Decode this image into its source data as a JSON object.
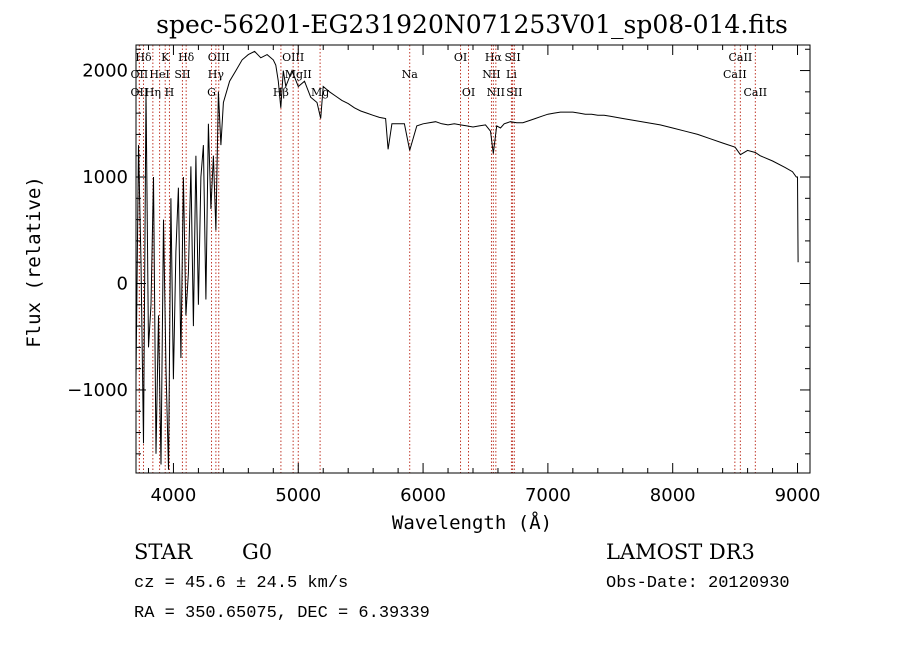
{
  "chart_data": {
    "type": "line",
    "title": "spec-56201-EG231920N071253V01_sp08-014.fits",
    "xlabel": "Wavelength (Å)",
    "ylabel": "Flux (relative)",
    "xlim": [
      3700,
      9100
    ],
    "ylim": [
      -1780,
      2240
    ],
    "x_ticks": [
      4000,
      5000,
      6000,
      7000,
      8000,
      9000
    ],
    "y_ticks": [
      -1000,
      0,
      1000,
      2000
    ],
    "series": [
      {
        "name": "flux",
        "x": [
          3700,
          3720,
          3740,
          3760,
          3780,
          3800,
          3820,
          3840,
          3860,
          3880,
          3900,
          3920,
          3940,
          3960,
          3980,
          4000,
          4020,
          4040,
          4060,
          4080,
          4100,
          4120,
          4140,
          4160,
          4180,
          4200,
          4220,
          4240,
          4260,
          4280,
          4300,
          4320,
          4340,
          4360,
          4380,
          4400,
          4450,
          4500,
          4550,
          4600,
          4650,
          4700,
          4750,
          4800,
          4820,
          4840,
          4860,
          4880,
          4900,
          4950,
          5000,
          5050,
          5100,
          5150,
          5180,
          5200,
          5250,
          5300,
          5350,
          5400,
          5450,
          5500,
          5550,
          5600,
          5650,
          5700,
          5720,
          5750,
          5800,
          5850,
          5893,
          5950,
          6000,
          6050,
          6100,
          6150,
          6200,
          6250,
          6300,
          6350,
          6400,
          6450,
          6500,
          6540,
          6563,
          6590,
          6620,
          6650,
          6700,
          6750,
          6800,
          6850,
          6900,
          6950,
          7000,
          7050,
          7100,
          7150,
          7200,
          7250,
          7300,
          7350,
          7400,
          7450,
          7500,
          7600,
          7700,
          7800,
          7900,
          8000,
          8100,
          8200,
          8300,
          8400,
          8500,
          8542,
          8600,
          8662,
          8700,
          8800,
          8900,
          8960,
          8990,
          9000,
          9005
        ],
        "values": [
          -900,
          1300,
          200,
          -1500,
          1800,
          -600,
          -200,
          1000,
          -1600,
          -300,
          -1700,
          600,
          -800,
          -1750,
          800,
          -900,
          300,
          900,
          -700,
          1000,
          -300,
          100,
          1100,
          -400,
          1200,
          -200,
          1000,
          1300,
          -150,
          1500,
          700,
          1200,
          500,
          1800,
          1300,
          1700,
          1900,
          2000,
          2100,
          2150,
          2180,
          2120,
          2150,
          2100,
          2050,
          1900,
          1650,
          2000,
          1850,
          2000,
          1850,
          1900,
          1750,
          1700,
          1550,
          1850,
          1800,
          1760,
          1720,
          1690,
          1650,
          1620,
          1600,
          1580,
          1560,
          1550,
          1260,
          1500,
          1500,
          1500,
          1250,
          1480,
          1500,
          1510,
          1520,
          1500,
          1490,
          1500,
          1490,
          1480,
          1470,
          1480,
          1490,
          1430,
          1220,
          1480,
          1460,
          1500,
          1520,
          1510,
          1510,
          1530,
          1550,
          1570,
          1590,
          1600,
          1610,
          1610,
          1610,
          1600,
          1590,
          1590,
          1580,
          1580,
          1570,
          1550,
          1530,
          1510,
          1490,
          1460,
          1430,
          1400,
          1360,
          1320,
          1280,
          1210,
          1250,
          1230,
          1200,
          1150,
          1090,
          1050,
          1000,
          1000,
          200
        ]
      }
    ],
    "line_markers": [
      {
        "label": "Hδ",
        "wavelength": 3760,
        "tier": 0
      },
      {
        "label": "K",
        "wavelength": 3934,
        "tier": 0
      },
      {
        "label": "Hδ",
        "wavelength": 4102,
        "tier": 0
      },
      {
        "label": "OIII",
        "wavelength": 4363,
        "tier": 0
      },
      {
        "label": "OIII",
        "wavelength": 4959,
        "tier": 0
      },
      {
        "label": "OI",
        "wavelength": 6300,
        "tier": 0
      },
      {
        "label": "Hα",
        "wavelength": 6563,
        "tier": 0
      },
      {
        "label": "SII",
        "wavelength": 6717,
        "tier": 0
      },
      {
        "label": "CaII",
        "wavelength": 8542,
        "tier": 0
      },
      {
        "label": "OII",
        "wavelength": 3727,
        "tier": 1
      },
      {
        "label": "HeI",
        "wavelength": 3889,
        "tier": 1
      },
      {
        "label": "SII",
        "wavelength": 4072,
        "tier": 1
      },
      {
        "label": "Hγ",
        "wavelength": 4340,
        "tier": 1
      },
      {
        "label": "MgII",
        "wavelength": 5000,
        "tier": 1
      },
      {
        "label": "Na",
        "wavelength": 5893,
        "tier": 1
      },
      {
        "label": "NII",
        "wavelength": 6548,
        "tier": 1
      },
      {
        "label": "Li",
        "wavelength": 6708,
        "tier": 1
      },
      {
        "label": "CaII",
        "wavelength": 8498,
        "tier": 1
      },
      {
        "label": "OII",
        "wavelength": 3727,
        "tier": 2
      },
      {
        "label": "Hη",
        "wavelength": 3835,
        "tier": 2
      },
      {
        "label": "H",
        "wavelength": 3968,
        "tier": 2
      },
      {
        "label": "G",
        "wavelength": 4305,
        "tier": 2
      },
      {
        "label": "Hβ",
        "wavelength": 4861,
        "tier": 2
      },
      {
        "label": "Mg",
        "wavelength": 5175,
        "tier": 2
      },
      {
        "label": "OI",
        "wavelength": 6364,
        "tier": 2
      },
      {
        "label": "NII",
        "wavelength": 6583,
        "tier": 2
      },
      {
        "label": "SII",
        "wavelength": 6731,
        "tier": 2
      },
      {
        "label": "CaII",
        "wavelength": 8662,
        "tier": 2
      }
    ]
  },
  "info": {
    "object_class": "STAR",
    "subclass": "G0",
    "survey": "LAMOST DR3",
    "redshift": "cz = 45.6 ± 24.5 km/s",
    "obs_date": "Obs-Date: 20120930",
    "coords": "RA = 350.65075, DEC =   6.39339"
  }
}
